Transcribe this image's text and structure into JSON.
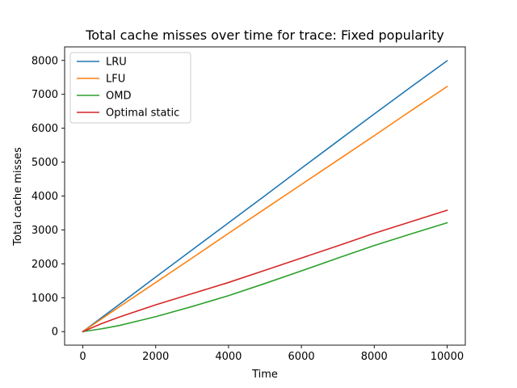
{
  "chart_data": {
    "type": "line",
    "title": "Total cache misses over time for trace: Fixed popularity",
    "xlabel": "Time",
    "ylabel": "Total cache misses",
    "xlim": [
      -500,
      10500
    ],
    "ylim": [
      -400,
      8400
    ],
    "xticks": [
      0,
      2000,
      4000,
      6000,
      8000,
      10000
    ],
    "yticks": [
      0,
      1000,
      2000,
      3000,
      4000,
      5000,
      6000,
      7000,
      8000
    ],
    "grid": false,
    "legend_position": "top-left",
    "series": [
      {
        "name": "LRU",
        "color": "#1f77b4",
        "x": [
          0,
          1000,
          2000,
          3000,
          4000,
          5000,
          6000,
          7000,
          8000,
          9000,
          10000
        ],
        "y": [
          0,
          800,
          1610,
          2410,
          3210,
          4010,
          4820,
          5620,
          6420,
          7210,
          7990
        ]
      },
      {
        "name": "LFU",
        "color": "#ff7f0e",
        "x": [
          0,
          1000,
          2000,
          3000,
          4000,
          5000,
          6000,
          7000,
          8000,
          9000,
          10000
        ],
        "y": [
          0,
          730,
          1450,
          2170,
          2900,
          3620,
          4340,
          5060,
          5780,
          6510,
          7230
        ]
      },
      {
        "name": "OMD",
        "color": "#2ca02c",
        "x": [
          0,
          500,
          1000,
          1500,
          2000,
          3000,
          4000,
          5000,
          6000,
          7000,
          8000,
          9000,
          10000
        ],
        "y": [
          0,
          80,
          180,
          310,
          440,
          740,
          1060,
          1420,
          1790,
          2170,
          2540,
          2880,
          3210
        ]
      },
      {
        "name": "Optimal static",
        "color": "#d62728",
        "x": [
          0,
          500,
          1000,
          2000,
          3000,
          4000,
          5000,
          6000,
          7000,
          8000,
          9000,
          10000
        ],
        "y": [
          0,
          230,
          430,
          790,
          1120,
          1450,
          1810,
          2170,
          2530,
          2900,
          3240,
          3580
        ]
      }
    ]
  }
}
